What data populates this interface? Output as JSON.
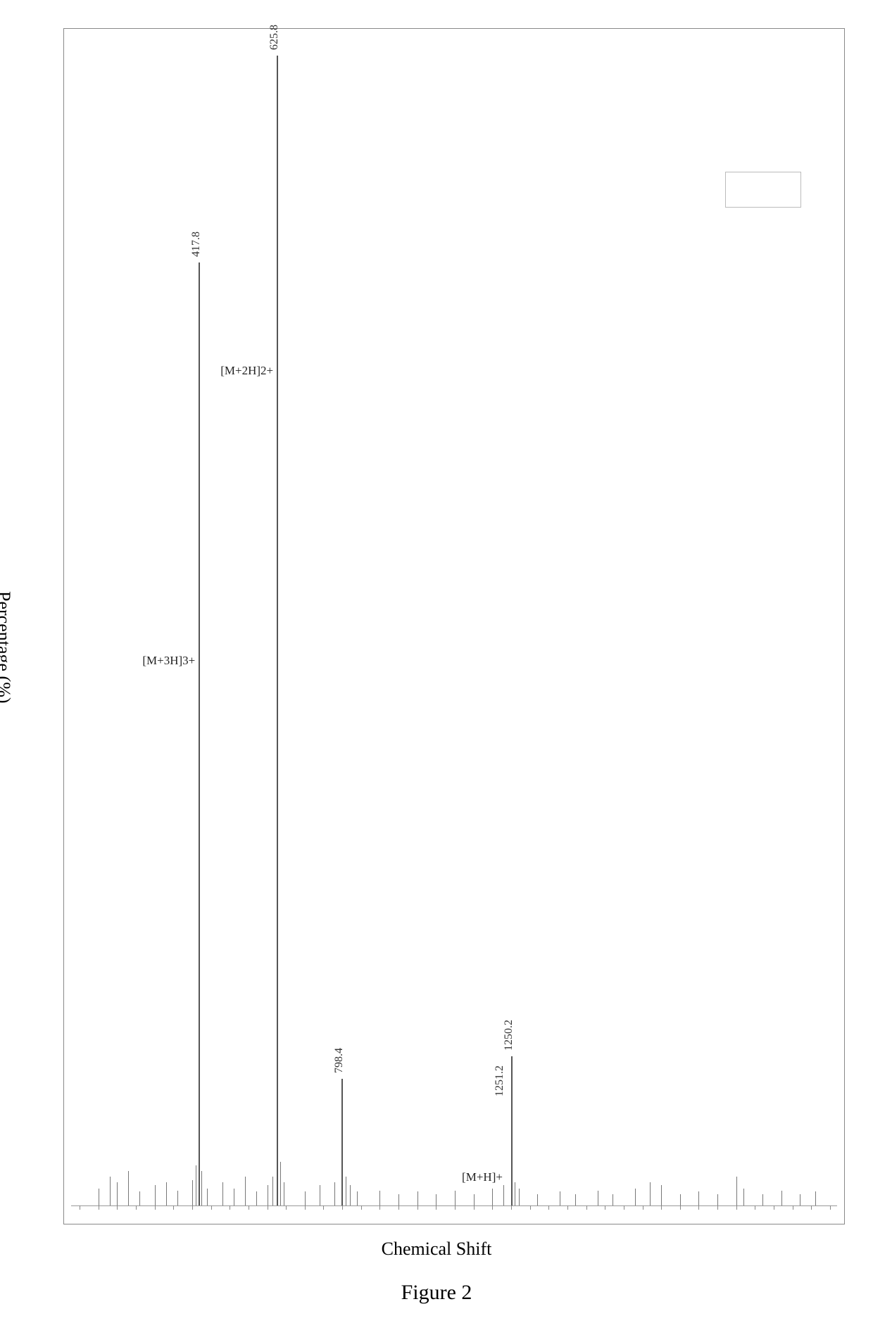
{
  "figure": {
    "caption": "Figure 2",
    "xlabel": "Chemical Shift",
    "ylabel": "Percentage (%)",
    "frame_color": "#888888",
    "background_color": "#ffffff",
    "line_color": "#555555",
    "text_color": "#000000",
    "label_fontsize": 26,
    "caption_fontsize": 30,
    "font_family": "Times New Roman"
  },
  "spectrum": {
    "type": "mass-spectrum",
    "x_range": [
      100,
      2100
    ],
    "y_range_percent": [
      0,
      100
    ],
    "baseline_y": 0,
    "peaks": [
      {
        "mz": 417.8,
        "intensity": 82,
        "label": "417.8",
        "ion": "[M+3H]3+"
      },
      {
        "mz": 625.8,
        "intensity": 100,
        "label": "625.8",
        "ion": "[M+2H]2+"
      },
      {
        "mz": 798.4,
        "intensity": 11,
        "label": "798.4",
        "ion": null
      },
      {
        "mz": 1250.2,
        "intensity": 13,
        "label": "1250.2",
        "ion": "[M+H]+"
      },
      {
        "mz": 1251.2,
        "intensity": 9,
        "label": "1251.2",
        "ion": null
      }
    ],
    "noise_peaks": [
      {
        "mz": 150,
        "intensity": 1.5
      },
      {
        "mz": 180,
        "intensity": 2.5
      },
      {
        "mz": 200,
        "intensity": 2
      },
      {
        "mz": 230,
        "intensity": 3
      },
      {
        "mz": 260,
        "intensity": 1.2
      },
      {
        "mz": 300,
        "intensity": 1.8
      },
      {
        "mz": 330,
        "intensity": 2
      },
      {
        "mz": 360,
        "intensity": 1.3
      },
      {
        "mz": 400,
        "intensity": 2.2
      },
      {
        "mz": 410,
        "intensity": 3.5
      },
      {
        "mz": 425,
        "intensity": 3
      },
      {
        "mz": 440,
        "intensity": 1.5
      },
      {
        "mz": 480,
        "intensity": 2
      },
      {
        "mz": 510,
        "intensity": 1.5
      },
      {
        "mz": 540,
        "intensity": 2.5
      },
      {
        "mz": 570,
        "intensity": 1.2
      },
      {
        "mz": 600,
        "intensity": 1.8
      },
      {
        "mz": 615,
        "intensity": 2.5
      },
      {
        "mz": 635,
        "intensity": 3.8
      },
      {
        "mz": 645,
        "intensity": 2
      },
      {
        "mz": 700,
        "intensity": 1.2
      },
      {
        "mz": 740,
        "intensity": 1.8
      },
      {
        "mz": 780,
        "intensity": 2
      },
      {
        "mz": 810,
        "intensity": 2.5
      },
      {
        "mz": 820,
        "intensity": 1.8
      },
      {
        "mz": 840,
        "intensity": 1.2
      },
      {
        "mz": 900,
        "intensity": 1.3
      },
      {
        "mz": 950,
        "intensity": 1
      },
      {
        "mz": 1000,
        "intensity": 1.2
      },
      {
        "mz": 1050,
        "intensity": 1
      },
      {
        "mz": 1100,
        "intensity": 1.3
      },
      {
        "mz": 1150,
        "intensity": 1
      },
      {
        "mz": 1200,
        "intensity": 1.5
      },
      {
        "mz": 1230,
        "intensity": 1.8
      },
      {
        "mz": 1260,
        "intensity": 2
      },
      {
        "mz": 1270,
        "intensity": 1.5
      },
      {
        "mz": 1320,
        "intensity": 1
      },
      {
        "mz": 1380,
        "intensity": 1.2
      },
      {
        "mz": 1420,
        "intensity": 1
      },
      {
        "mz": 1480,
        "intensity": 1.3
      },
      {
        "mz": 1520,
        "intensity": 1
      },
      {
        "mz": 1580,
        "intensity": 1.5
      },
      {
        "mz": 1620,
        "intensity": 2
      },
      {
        "mz": 1650,
        "intensity": 1.8
      },
      {
        "mz": 1700,
        "intensity": 1
      },
      {
        "mz": 1750,
        "intensity": 1.2
      },
      {
        "mz": 1800,
        "intensity": 1
      },
      {
        "mz": 1850,
        "intensity": 2.5
      },
      {
        "mz": 1870,
        "intensity": 1.5
      },
      {
        "mz": 1920,
        "intensity": 1
      },
      {
        "mz": 1970,
        "intensity": 1.3
      },
      {
        "mz": 2020,
        "intensity": 1
      },
      {
        "mz": 2060,
        "intensity": 1.2
      }
    ],
    "tick_step": 50,
    "legend_box": {
      "x": 1820,
      "y_percent": 90,
      "width_mz": 200,
      "height_percent": 3
    }
  }
}
